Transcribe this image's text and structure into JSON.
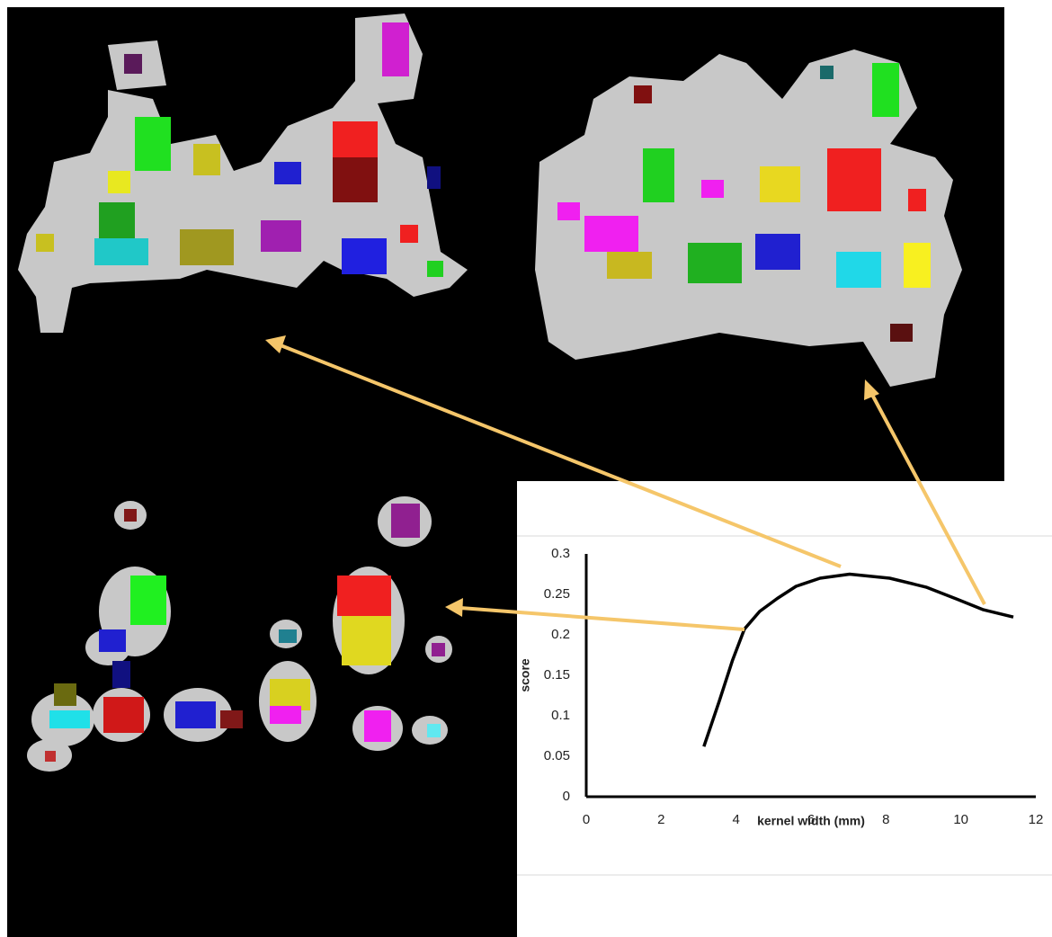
{
  "chart_data": {
    "type": "line",
    "xlabel": "kernel width (mm)",
    "ylabel": "score",
    "series": [
      {
        "color": "#000000",
        "x": [
          3.14,
          3.55,
          3.9,
          4.22,
          4.63,
          5.1,
          5.6,
          6.24,
          7.03,
          8.1,
          9.07,
          9.9,
          10.6,
          11.4
        ],
        "values": [
          0.062,
          0.118,
          0.168,
          0.207,
          0.229,
          0.245,
          0.26,
          0.27,
          0.275,
          0.27,
          0.259,
          0.244,
          0.231,
          0.222
        ]
      }
    ],
    "xlim": [
      0,
      12
    ],
    "xticks": [
      0,
      2,
      4,
      6,
      8,
      10,
      12
    ],
    "ylim": [
      0,
      0.3
    ],
    "yticks": [
      0,
      0.05,
      0.1,
      0.15,
      0.2,
      0.25,
      0.3
    ],
    "grid": false
  }
}
